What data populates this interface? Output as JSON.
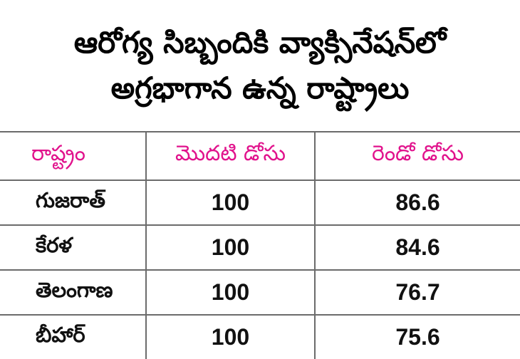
{
  "title": {
    "line1": "ఆరోగ్య సిబ్బందికి వ్యాక్సినేషన్‌లో",
    "line2": "అగ్రభాగాన ఉన్న రాష్ట్రాలు"
  },
  "table": {
    "headers": [
      "రాష్ట్రం",
      "మొదటి డోసు",
      "రెండో డోసు"
    ],
    "rows": [
      {
        "state": "గుజరాత్",
        "first_dose": "100",
        "second_dose": "86.6"
      },
      {
        "state": "కేరళ",
        "first_dose": "100",
        "second_dose": "84.6"
      },
      {
        "state": "తెలంగాణ",
        "first_dose": "100",
        "second_dose": "76.7"
      },
      {
        "state": "బీహార్",
        "first_dose": "100",
        "second_dose": "75.6"
      }
    ]
  },
  "colors": {
    "header_text": "#e1128c",
    "grid": "#6b6b6b",
    "body_text": "#111111"
  }
}
